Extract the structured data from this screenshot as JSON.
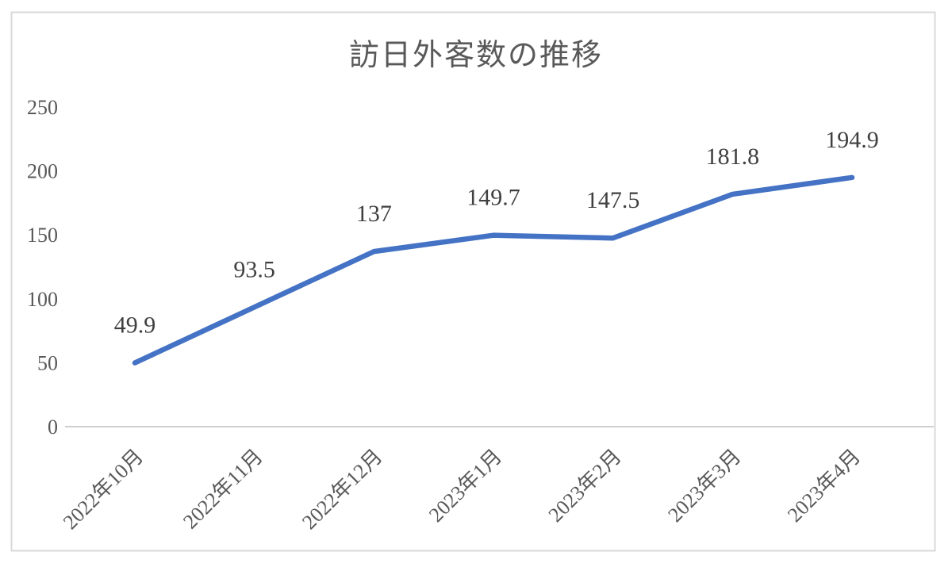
{
  "chart_data": {
    "type": "line",
    "title": "訪日外客数の推移",
    "categories": [
      "2022年10月",
      "2022年11月",
      "2022年12月",
      "2023年1月",
      "2023年2月",
      "2023年3月",
      "2023年4月"
    ],
    "values": [
      49.9,
      93.5,
      137,
      149.7,
      147.5,
      181.8,
      194.9
    ],
    "data_labels": [
      "49.9",
      "93.5",
      "137",
      "149.7",
      "147.5",
      "181.8",
      "194.9"
    ],
    "xlabel": "",
    "ylabel": "",
    "ylim": [
      0,
      250
    ],
    "yticks": [
      0,
      50,
      100,
      150,
      200,
      250
    ],
    "grid": false,
    "legend_position": "none",
    "colors": {
      "series_line": "#4472C4",
      "axis_line": "#D0CECE",
      "chart_border": "#D9D9D9",
      "axis_text": "#595959",
      "title_text": "#595959",
      "data_label_text": "#404040"
    }
  }
}
